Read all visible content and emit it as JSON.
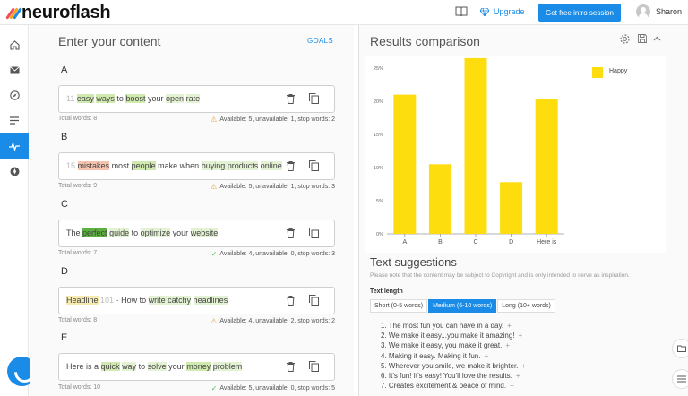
{
  "header": {
    "logo_text": "neuroflash",
    "upgrade_label": "Upgrade",
    "intro_button_label": "Get free intro session",
    "user_name": "Sharon",
    "accent_color": "#1a8be6"
  },
  "sidebar": {
    "items": [
      {
        "icon": "home-icon",
        "active": false
      },
      {
        "icon": "mail-icon",
        "active": false
      },
      {
        "icon": "compass-icon",
        "active": false
      },
      {
        "icon": "list-icon",
        "active": false
      },
      {
        "icon": "pulse-icon",
        "active": true
      },
      {
        "icon": "rocket-icon",
        "active": false
      }
    ]
  },
  "left": {
    "title": "Enter your content",
    "goals_label": "GOALS",
    "variants": [
      {
        "letter": "A",
        "total": "Total words: 8",
        "availability": "Available: 5, unavailable: 1, stop words: 2",
        "status": "warning"
      },
      {
        "letter": "B",
        "total": "Total words: 9",
        "availability": "Available: 5, unavailable: 1, stop words: 3",
        "status": "warning"
      },
      {
        "letter": "C",
        "total": "Total words: 7",
        "availability": "Available: 4, unavailable: 0, stop words: 3",
        "status": "ok"
      },
      {
        "letter": "D",
        "total": "Total words: 8",
        "availability": "Available: 4, unavailable: 2, stop words: 2",
        "status": "warning"
      },
      {
        "letter": "E",
        "total": "Total words: 10",
        "availability": "Available: 5, unavailable: 0, stop words: 5",
        "status": "ok"
      }
    ],
    "texts": {
      "a": {
        "num": "11",
        "w1": "easy",
        "w2": "ways",
        "w3": "to",
        "w4": "boost",
        "w5": "your",
        "w6": "open",
        "w7": "rate"
      },
      "b": {
        "num": "15",
        "w1": "mistakes",
        "w2": "most",
        "w3": "people",
        "w4": "make when",
        "w5": "buying products",
        "w6": "online"
      },
      "c": {
        "w1": "The",
        "w2": "perfect",
        "w3": "guide",
        "w4": "to",
        "w5": "optimize",
        "w6": "your",
        "w7": "website"
      },
      "d": {
        "w1": "Headline",
        "num": "101",
        "w2": "· How to",
        "w3": "write catchy",
        "w4": "headlines"
      },
      "e": {
        "w1": "Here is a",
        "w2": "quick",
        "w3": "way",
        "w4": "to",
        "w5": "solve",
        "w6": "your",
        "w7": "money",
        "w8": "problem"
      }
    }
  },
  "right": {
    "title": "Results comparison",
    "legend": "Happy",
    "suggestions_title": "Text suggestions",
    "copyright_note": "Please note that the content may be subject to Copyright and is only intended to serve as inspiration.",
    "text_length_label": "Text length",
    "length_tabs": [
      "Short (0-5 words)",
      "Medium (6-10 words)",
      "Long (10+ words)"
    ],
    "active_length_tab": 1,
    "suggestions": [
      "1. The most fun you can have in a day.",
      "2. We make it easy...you make it amazing!",
      "3. We make it easy, you make it great.",
      "4. Making it easy. Making it fun.",
      "5. Wherever you smile, we make it brighter.",
      "6. It's fun! It's easy! You'll love the results.",
      "7. Creates excitement & peace of mind."
    ]
  },
  "chart_data": {
    "type": "bar",
    "categories": [
      "A",
      "B",
      "C",
      "D",
      "Here is"
    ],
    "series": [
      {
        "name": "Happy",
        "values": [
          21,
          10.5,
          26.5,
          7.8,
          20.3
        ],
        "color": "#fedd0f"
      }
    ],
    "ylim": [
      0,
      25
    ],
    "yticks": [
      "0%",
      "5%",
      "10%",
      "15%",
      "20%",
      "25%"
    ],
    "legend_position": "top-right",
    "grid": false
  }
}
